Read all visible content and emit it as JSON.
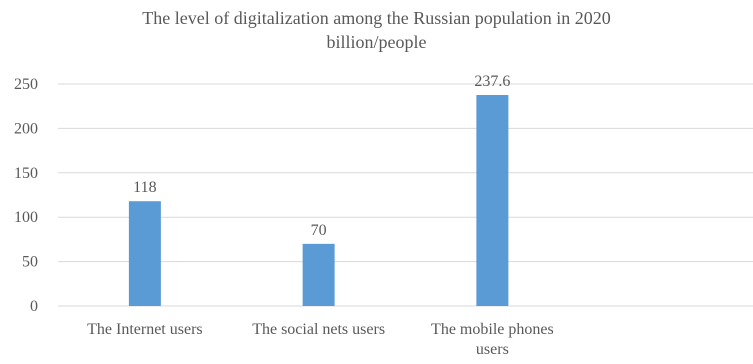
{
  "chart_data": {
    "type": "bar",
    "title": "The level of digitalization among the Russian population in 2020",
    "subtitle": "billion/people",
    "categories": [
      "The Internet users",
      "The social nets users",
      "The mobile phones users",
      ""
    ],
    "category_lines": [
      [
        "The Internet users"
      ],
      [
        "The social nets users"
      ],
      [
        "The mobile phones",
        "users"
      ],
      []
    ],
    "values": [
      118,
      70,
      237.6,
      null
    ],
    "data_labels": [
      "118",
      "70",
      "237.6",
      ""
    ],
    "ylim": [
      0,
      250
    ],
    "yticks": [
      0,
      50,
      100,
      150,
      200,
      250
    ],
    "grid": true,
    "legend": "none",
    "bar_color": "#5b9bd5",
    "grid_color": "#d9d9d9",
    "text_color": "#595959"
  }
}
